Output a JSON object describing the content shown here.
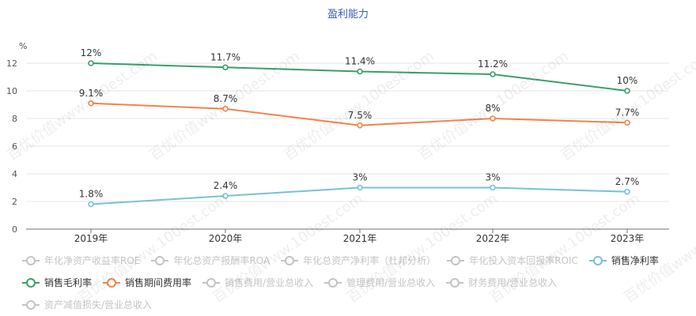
{
  "chart_data": {
    "type": "line",
    "title": "盈利能力",
    "unit_label": "%",
    "categories": [
      "2019年",
      "2020年",
      "2021年",
      "2022年",
      "2023年"
    ],
    "ylim": [
      0,
      12
    ],
    "yticks": [
      0,
      2,
      4,
      6,
      8,
      10,
      12
    ],
    "grid": true,
    "legend_placement": "bottom",
    "series": [
      {
        "name": "销售毛利率",
        "color": "#3a9e6e",
        "values": [
          12,
          11.7,
          11.4,
          11.2,
          10
        ],
        "labels": [
          "12%",
          "11.7%",
          "11.4%",
          "11.2%",
          "10%"
        ]
      },
      {
        "name": "销售期间费用率",
        "color": "#f0844c",
        "values": [
          9.1,
          8.7,
          7.5,
          8,
          7.7
        ],
        "labels": [
          "9.1%",
          "8.7%",
          "7.5%",
          "8%",
          "7.7%"
        ]
      },
      {
        "name": "销售净利率",
        "color": "#79c0d8",
        "values": [
          1.8,
          2.4,
          3,
          3,
          2.7
        ],
        "labels": [
          "1.8%",
          "2.4%",
          "3%",
          "3%",
          "2.7%"
        ]
      }
    ]
  },
  "legend": [
    {
      "label": "年化净资产收益率ROE",
      "active": false,
      "color": "#c4c4c4"
    },
    {
      "label": "年化总资产报酬率ROA",
      "active": false,
      "color": "#c4c4c4"
    },
    {
      "label": "年化总资产净利率（杜邦分析）",
      "active": false,
      "color": "#c4c4c4"
    },
    {
      "label": "年化投入资本回报率ROIC",
      "active": false,
      "color": "#c4c4c4"
    },
    {
      "label": "销售净利率",
      "active": true,
      "color": "#79c0d8"
    },
    {
      "label": "销售毛利率",
      "active": true,
      "color": "#3a9e6e"
    },
    {
      "label": "销售期间费用率",
      "active": true,
      "color": "#f0844c"
    },
    {
      "label": "销售费用/营业总收入",
      "active": false,
      "color": "#c4c4c4"
    },
    {
      "label": "管理费用/营业总收入",
      "active": false,
      "color": "#c4c4c4"
    },
    {
      "label": "财务费用/营业总收入",
      "active": false,
      "color": "#c4c4c4"
    },
    {
      "label": "资产减值损失/营业总收入",
      "active": false,
      "color": "#c4c4c4"
    }
  ],
  "watermark_text": "百优价值www.100est.com"
}
